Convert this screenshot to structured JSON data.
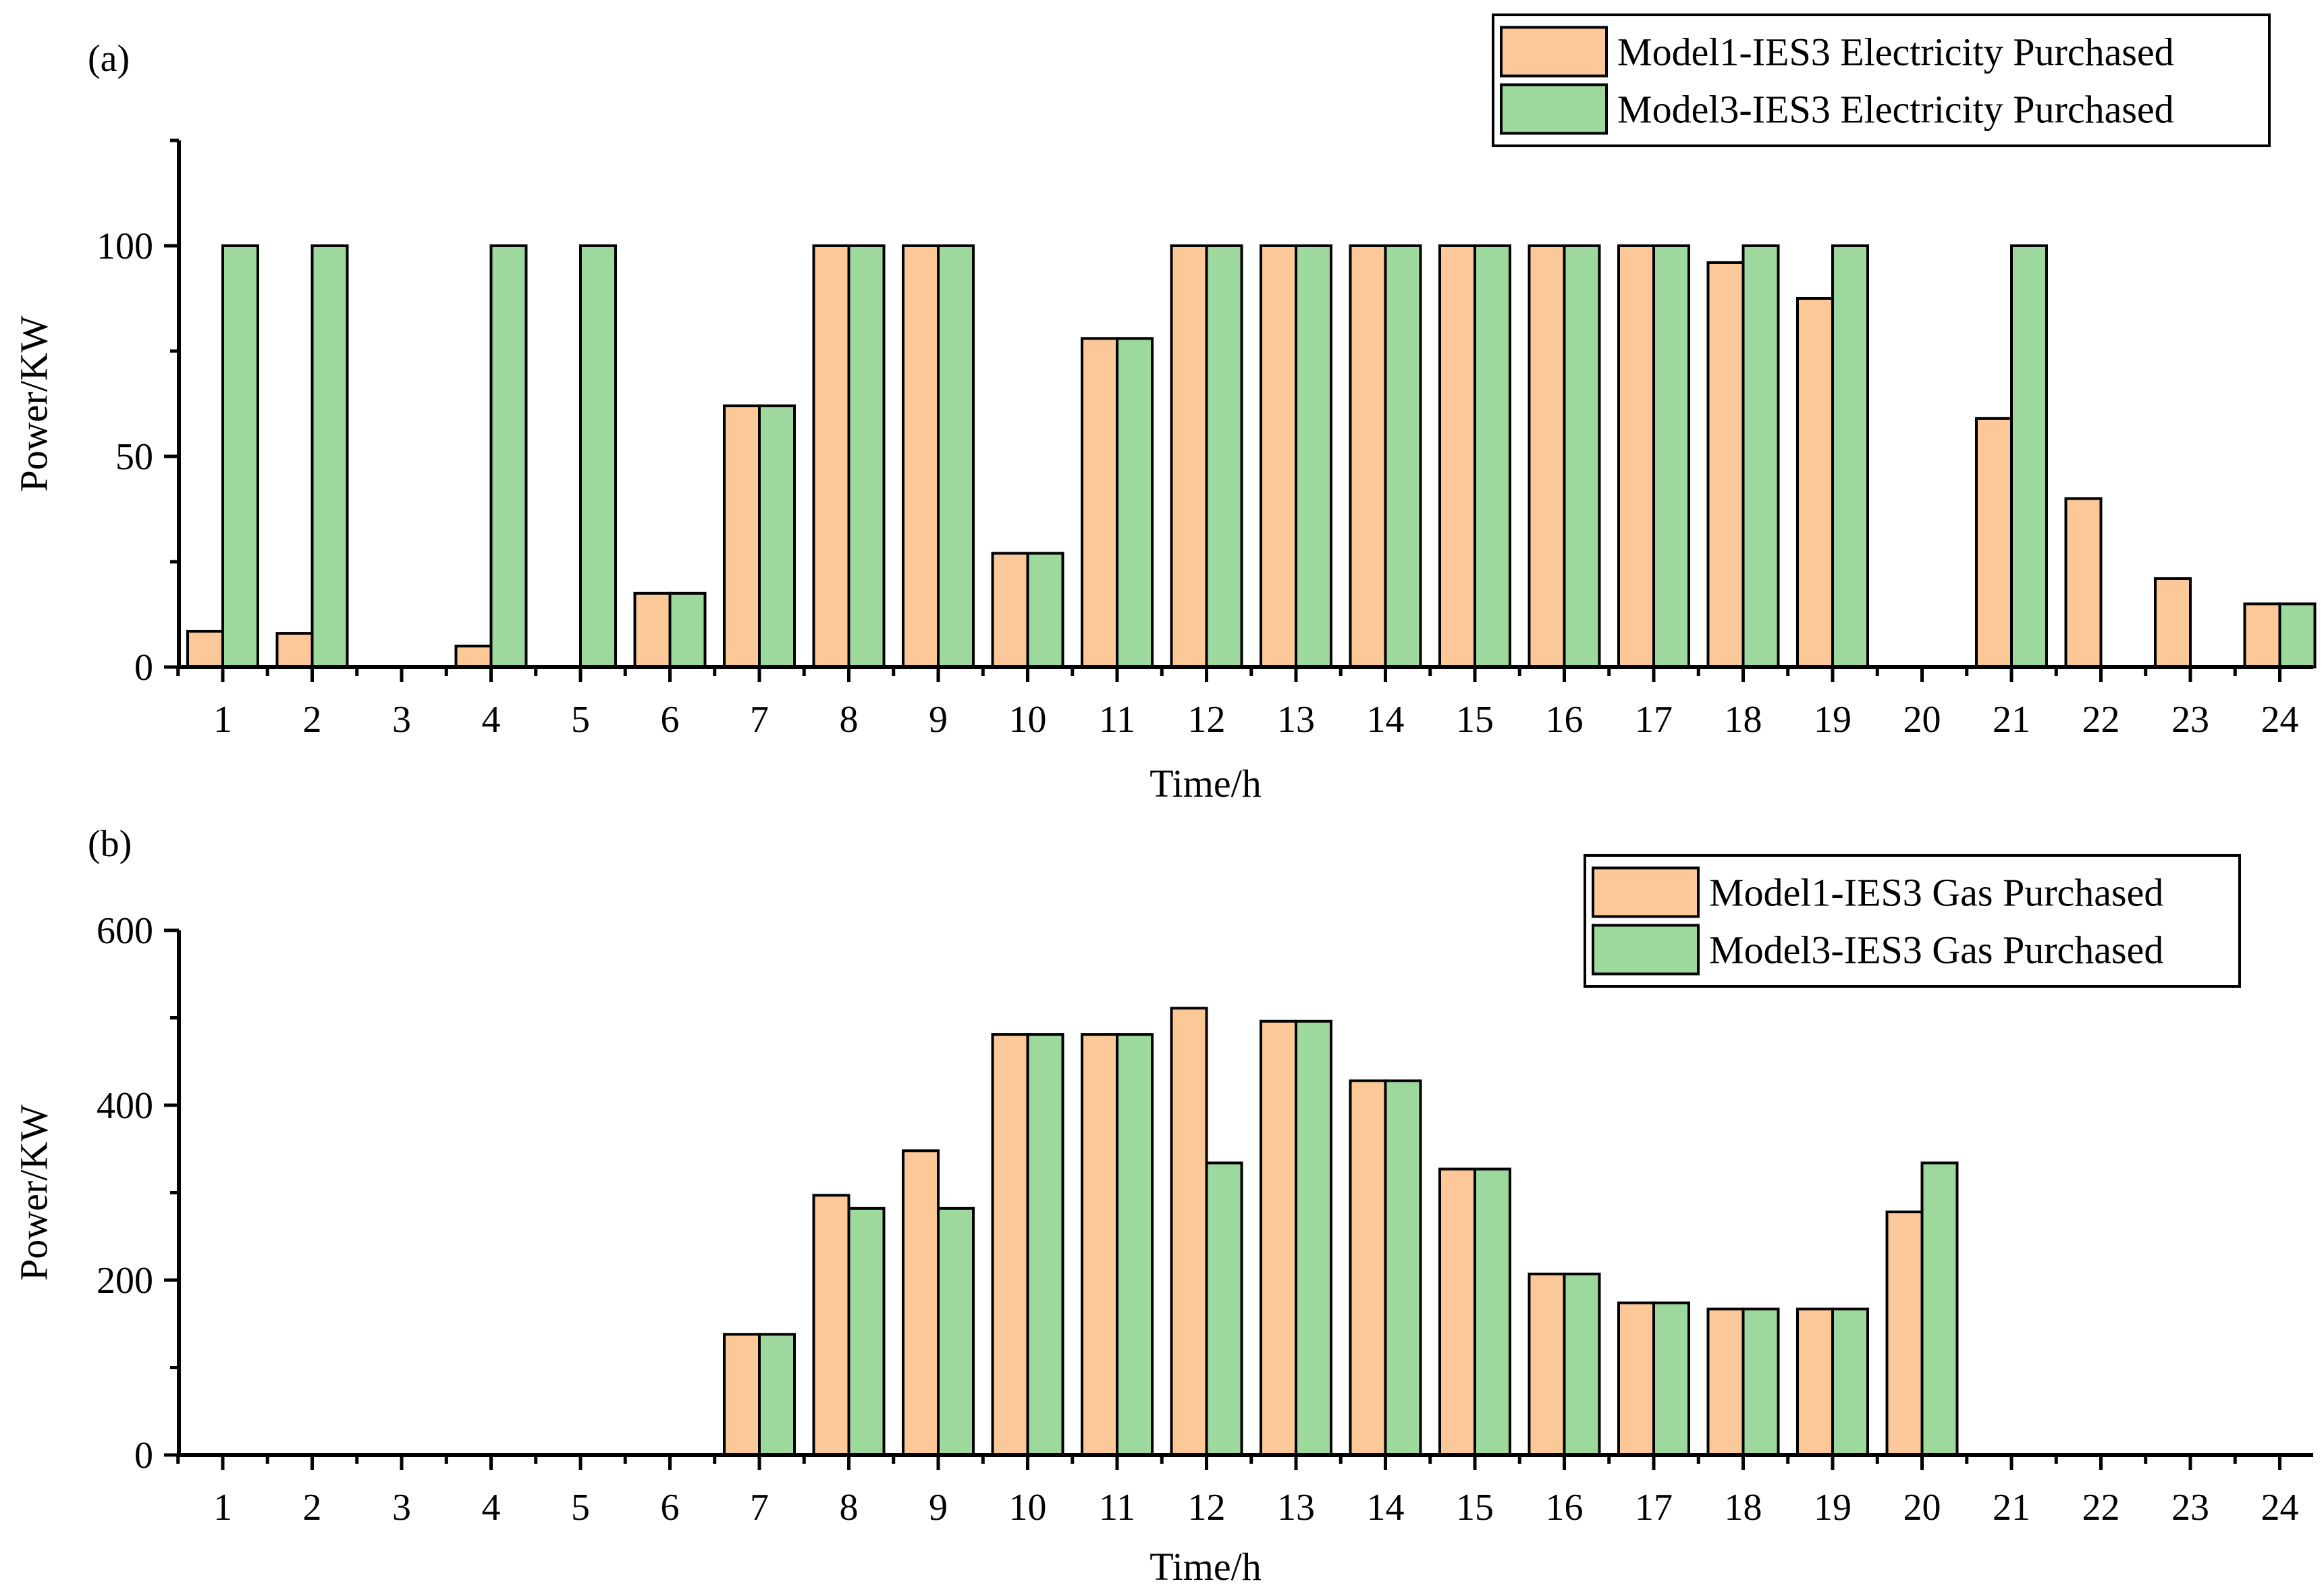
{
  "colors": {
    "model1": "#FDC897",
    "model3": "#9DD89D",
    "axis": "#000000",
    "background": "#FFFFFF"
  },
  "chart_data": [
    {
      "panel_label": "(a)",
      "type": "bar",
      "xlabel": "Time/h",
      "ylabel": "Power/KW",
      "ylim": [
        0,
        125
      ],
      "yticks": [
        0,
        50,
        100
      ],
      "yminor_step": 25,
      "categories": [
        "1",
        "2",
        "3",
        "4",
        "5",
        "6",
        "7",
        "8",
        "9",
        "10",
        "11",
        "12",
        "13",
        "14",
        "15",
        "16",
        "17",
        "18",
        "19",
        "20",
        "21",
        "22",
        "23",
        "24"
      ],
      "legend_position": "top-right",
      "series": [
        {
          "name": "Model1-IES3 Electricity Purchased",
          "color_key": "model1",
          "values": [
            8.5,
            8,
            0,
            5,
            0,
            17.5,
            62,
            100,
            100,
            27,
            78,
            100,
            100,
            100,
            100,
            100,
            100,
            96,
            87.5,
            0,
            59,
            40,
            21,
            15
          ]
        },
        {
          "name": "Model3-IES3 Electricity Purchased",
          "color_key": "model3",
          "values": [
            100,
            100,
            0,
            100,
            100,
            17.5,
            62,
            100,
            100,
            27,
            78,
            100,
            100,
            100,
            100,
            100,
            100,
            100,
            100,
            0,
            100,
            0,
            0,
            15
          ]
        }
      ]
    },
    {
      "panel_label": "(b)",
      "type": "bar",
      "xlabel": "Time/h",
      "ylabel": "Power/KW",
      "ylim": [
        0,
        600
      ],
      "yticks": [
        0,
        200,
        400,
        600
      ],
      "yminor_step": 100,
      "categories": [
        "1",
        "2",
        "3",
        "4",
        "5",
        "6",
        "7",
        "8",
        "9",
        "10",
        "11",
        "12",
        "13",
        "14",
        "15",
        "16",
        "17",
        "18",
        "19",
        "20",
        "21",
        "22",
        "23",
        "24"
      ],
      "legend_position": "top-right",
      "series": [
        {
          "name": "Model1-IES3 Gas Purchased",
          "color_key": "model1",
          "values": [
            0,
            0,
            0,
            0,
            0,
            0,
            138,
            297,
            348,
            481,
            481,
            511,
            496,
            428,
            327,
            207,
            174,
            167,
            167,
            278,
            0,
            0,
            0,
            0
          ]
        },
        {
          "name": "Model3-IES3 Gas Purchased",
          "color_key": "model3",
          "values": [
            0,
            0,
            0,
            0,
            0,
            0,
            138,
            282,
            282,
            481,
            481,
            334,
            496,
            428,
            327,
            207,
            174,
            167,
            167,
            334,
            0,
            0,
            0,
            0
          ]
        }
      ]
    }
  ]
}
